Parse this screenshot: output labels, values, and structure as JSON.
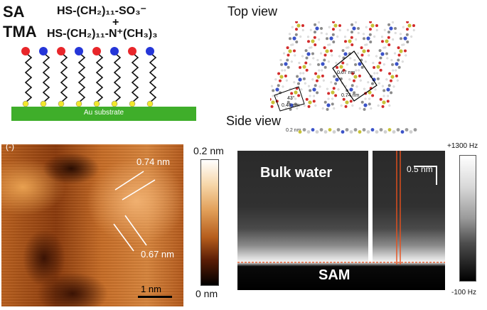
{
  "schematic": {
    "sa_label": "SA",
    "tma_label": "TMA",
    "formula_sa": "HS-(CH₂)₁₁-SO₃⁻",
    "plus": "+",
    "formula_tma": "HS-(CH₂)₁₁-N⁺(CH₃)₃",
    "substrate_label": "Au substrate",
    "head_colors": [
      "red",
      "blue",
      "red",
      "blue",
      "red",
      "blue",
      "red",
      "blue"
    ]
  },
  "structure": {
    "top_view_title": "Top view",
    "side_view_title": "Side view",
    "lattice_a": "0.67 nm",
    "lattice_b": "0.74 nm",
    "lattice_c": "0.46 nm",
    "angle": "43°",
    "side_scale": "0.2 nm"
  },
  "afm_topography": {
    "panel_mark": "(-)",
    "spacing_upper": "0.74 nm",
    "spacing_lower": "0.67 nm",
    "scale_bar": "1 nm",
    "colorbar_max": "0.2 nm",
    "colorbar_min": "0 nm"
  },
  "force_map": {
    "bulk_label": "Bulk water",
    "sam_label": "SAM",
    "scale_bar": "0.5 nm",
    "colorbar_max": "+1300 Hz",
    "colorbar_min": "-100 Hz"
  },
  "colors": {
    "sa_head": "#e8262a",
    "tma_head": "#2536d8",
    "thiol": "#f2e82b",
    "substrate": "#3fae2a",
    "trace_line": "#e8501c"
  }
}
